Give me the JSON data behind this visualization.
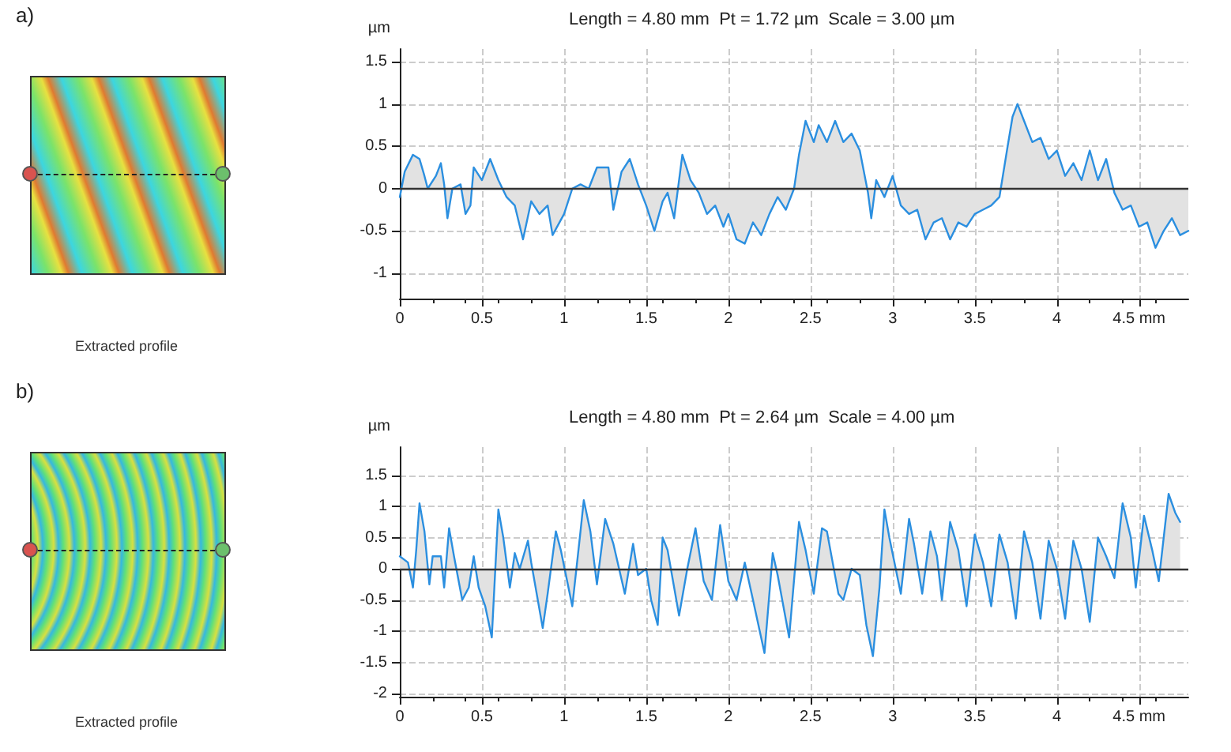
{
  "chart_data": [
    {
      "type": "area",
      "title": "Length = 4.80 mm  Pt = 1.72 µm  Scale = 3.00 µm",
      "ylabel": "µm",
      "annotations": [
        "a)",
        "Extracted profile"
      ],
      "xlim": [
        0,
        4.8
      ],
      "ylim": [
        -1.3,
        1.65
      ],
      "xticks": [
        0,
        0.5,
        1,
        1.5,
        2,
        2.5,
        3,
        3.5,
        4,
        {
          "value": 4.5,
          "label": "4.5 mm"
        }
      ],
      "yticks": [
        -1,
        -0.5,
        0,
        0.5,
        1,
        1.5
      ],
      "grid": true,
      "ref_lines": [
        {
          "axis": "y",
          "value": 0,
          "color": "#333333"
        }
      ],
      "series": [
        {
          "color": "#2b8fe0",
          "x": [
            0,
            0.03,
            0.08,
            0.12,
            0.15,
            0.17,
            0.22,
            0.25,
            0.27,
            0.29,
            0.32,
            0.37,
            0.4,
            0.43,
            0.45,
            0.5,
            0.55,
            0.6,
            0.65,
            0.7,
            0.75,
            0.8,
            0.85,
            0.9,
            0.93,
            1.0,
            1.05,
            1.1,
            1.15,
            1.2,
            1.27,
            1.3,
            1.35,
            1.4,
            1.45,
            1.5,
            1.55,
            1.6,
            1.63,
            1.67,
            1.72,
            1.77,
            1.82,
            1.87,
            1.92,
            1.97,
            2.0,
            2.05,
            2.1,
            2.15,
            2.2,
            2.25,
            2.3,
            2.35,
            2.4,
            2.43,
            2.47,
            2.52,
            2.55,
            2.6,
            2.65,
            2.7,
            2.75,
            2.8,
            2.85,
            2.87,
            2.9,
            2.95,
            3.0,
            3.05,
            3.1,
            3.15,
            3.2,
            3.25,
            3.3,
            3.35,
            3.4,
            3.45,
            3.5,
            3.55,
            3.6,
            3.65,
            3.7,
            3.73,
            3.76,
            3.8,
            3.85,
            3.9,
            3.95,
            4.0,
            4.05,
            4.1,
            4.15,
            4.2,
            4.25,
            4.3,
            4.35,
            4.4,
            4.45,
            4.5,
            4.55,
            4.6,
            4.65,
            4.7,
            4.75,
            4.8
          ],
          "values": [
            -0.1,
            0.2,
            0.4,
            0.35,
            0.15,
            0.0,
            0.15,
            0.3,
            0.05,
            -0.35,
            0.0,
            0.05,
            -0.3,
            -0.2,
            0.25,
            0.1,
            0.35,
            0.1,
            -0.1,
            -0.2,
            -0.6,
            -0.15,
            -0.3,
            -0.2,
            -0.55,
            -0.3,
            0.0,
            0.05,
            0.0,
            0.25,
            0.25,
            -0.25,
            0.2,
            0.35,
            0.05,
            -0.2,
            -0.5,
            -0.15,
            -0.05,
            -0.35,
            0.4,
            0.1,
            -0.05,
            -0.3,
            -0.2,
            -0.45,
            -0.3,
            -0.6,
            -0.65,
            -0.4,
            -0.55,
            -0.3,
            -0.1,
            -0.25,
            0.0,
            0.4,
            0.8,
            0.55,
            0.75,
            0.55,
            0.8,
            0.55,
            0.65,
            0.45,
            -0.05,
            -0.35,
            0.1,
            -0.1,
            0.15,
            -0.2,
            -0.3,
            -0.25,
            -0.6,
            -0.4,
            -0.35,
            -0.6,
            -0.4,
            -0.45,
            -0.3,
            -0.25,
            -0.2,
            -0.1,
            0.5,
            0.85,
            1.0,
            0.8,
            0.55,
            0.6,
            0.35,
            0.45,
            0.15,
            0.3,
            0.1,
            0.45,
            0.1,
            0.35,
            -0.05,
            -0.25,
            -0.2,
            -0.45,
            -0.4,
            -0.7,
            -0.5,
            -0.35,
            -0.55,
            -0.5
          ]
        }
      ]
    },
    {
      "type": "area",
      "title": "Length = 4.80 mm  Pt = 2.64 µm  Scale = 4.00 µm",
      "ylabel": "µm",
      "annotations": [
        "b)",
        "Extracted profile"
      ],
      "xlim": [
        0,
        4.8
      ],
      "ylim": [
        -2.05,
        1.95
      ],
      "xticks": [
        0,
        0.5,
        1,
        1.5,
        2,
        2.5,
        3,
        3.5,
        4,
        {
          "value": 4.5,
          "label": "4.5 mm"
        }
      ],
      "yticks": [
        -2,
        -1.5,
        -1,
        -0.5,
        0,
        0.5,
        1,
        1.5
      ],
      "grid": true,
      "ref_lines": [
        {
          "axis": "y",
          "value": 0,
          "color": "#333333"
        }
      ],
      "series": [
        {
          "color": "#2b8fe0",
          "x": [
            0,
            0.05,
            0.08,
            0.1,
            0.12,
            0.15,
            0.18,
            0.2,
            0.25,
            0.27,
            0.3,
            0.33,
            0.38,
            0.42,
            0.45,
            0.48,
            0.52,
            0.56,
            0.6,
            0.63,
            0.67,
            0.7,
            0.73,
            0.78,
            0.8,
            0.87,
            0.9,
            0.95,
            0.98,
            1.05,
            1.1,
            1.12,
            1.16,
            1.2,
            1.25,
            1.3,
            1.37,
            1.42,
            1.45,
            1.5,
            1.53,
            1.57,
            1.6,
            1.63,
            1.7,
            1.75,
            1.8,
            1.85,
            1.9,
            1.95,
            2.0,
            2.05,
            2.1,
            2.15,
            2.22,
            2.27,
            2.3,
            2.37,
            2.43,
            2.47,
            2.52,
            2.57,
            2.6,
            2.67,
            2.7,
            2.75,
            2.8,
            2.84,
            2.88,
            2.92,
            2.95,
            2.98,
            3.05,
            3.1,
            3.13,
            3.18,
            3.23,
            3.27,
            3.3,
            3.35,
            3.4,
            3.45,
            3.5,
            3.55,
            3.6,
            3.65,
            3.7,
            3.75,
            3.8,
            3.85,
            3.9,
            3.95,
            4.0,
            4.05,
            4.1,
            4.15,
            4.2,
            4.25,
            4.3,
            4.35,
            4.4,
            4.45,
            4.48,
            4.53,
            4.58,
            4.62,
            4.65,
            4.68,
            4.72,
            4.75
          ],
          "values": [
            0.2,
            0.1,
            -0.3,
            0.3,
            1.05,
            0.6,
            -0.25,
            0.2,
            0.2,
            -0.3,
            0.65,
            0.2,
            -0.5,
            -0.3,
            0.2,
            -0.3,
            -0.6,
            -1.1,
            0.95,
            0.5,
            -0.3,
            0.25,
            0.0,
            0.45,
            0.1,
            -0.95,
            -0.4,
            0.6,
            0.3,
            -0.6,
            0.6,
            1.1,
            0.6,
            -0.25,
            0.8,
            0.4,
            -0.4,
            0.4,
            -0.1,
            0.0,
            -0.5,
            -0.9,
            0.5,
            0.3,
            -0.75,
            0.0,
            0.65,
            -0.2,
            -0.5,
            0.7,
            -0.2,
            -0.5,
            0.1,
            -0.5,
            -1.35,
            0.25,
            -0.1,
            -1.1,
            0.75,
            0.3,
            -0.4,
            0.65,
            0.6,
            -0.4,
            -0.5,
            0.0,
            -0.1,
            -0.9,
            -1.4,
            -0.3,
            0.95,
            0.5,
            -0.4,
            0.8,
            0.4,
            -0.4,
            0.6,
            0.2,
            -0.5,
            0.75,
            0.3,
            -0.6,
            0.55,
            0.1,
            -0.6,
            0.55,
            0.1,
            -0.8,
            0.6,
            0.1,
            -0.8,
            0.45,
            0.0,
            -0.8,
            0.45,
            0.0,
            -0.85,
            0.5,
            0.2,
            -0.15,
            1.05,
            0.5,
            -0.3,
            0.85,
            0.3,
            -0.2,
            0.5,
            1.2,
            0.9,
            0.75
          ]
        }
      ]
    }
  ]
}
